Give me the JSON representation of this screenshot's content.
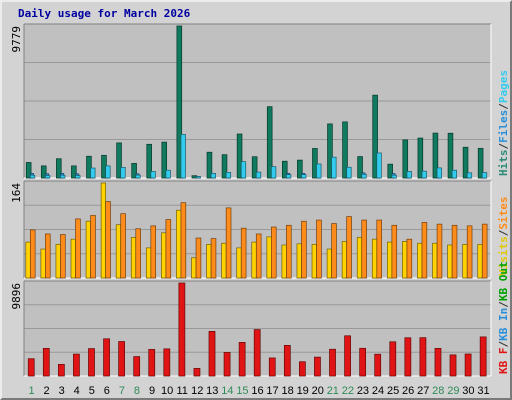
{
  "chart_data": {
    "type": "bar",
    "title": "Daily usage for March 2026",
    "title_color": "#0000a0",
    "categories": [
      "1",
      "2",
      "3",
      "4",
      "5",
      "6",
      "7",
      "8",
      "9",
      "10",
      "11",
      "12",
      "13",
      "14",
      "15",
      "16",
      "17",
      "18",
      "19",
      "20",
      "21",
      "22",
      "23",
      "24",
      "25",
      "26",
      "27",
      "28",
      "29",
      "30",
      "31"
    ],
    "weekend_days": [
      1,
      7,
      8,
      14,
      15,
      21,
      22,
      28,
      29
    ],
    "weekday_color": "#000000",
    "weekend_color": "#2e8b57",
    "panels": [
      {
        "id": "hits",
        "max_label": "9779",
        "ymax": 9779,
        "legend": [
          {
            "text": "Hits",
            "color": "#2e8b7a"
          },
          {
            "text": "/",
            "color": "#333333"
          },
          {
            "text": "Files",
            "color": "#2a8fd8"
          },
          {
            "text": "/",
            "color": "#333333"
          },
          {
            "text": "Pages",
            "color": "#33ccee"
          }
        ],
        "series": [
          {
            "name": "Hits",
            "color": "#0f7a5e",
            "values": [
              1000,
              780,
              1240,
              780,
              1400,
              1460,
              2260,
              940,
              2170,
              2310,
              9779,
              150,
              1660,
              1500,
              2830,
              1370,
              4590,
              1080,
              1150,
              1900,
              3480,
              3610,
              1380,
              5330,
              890,
              2450,
              2570,
              2890,
              2880,
              1980,
              1910
            ]
          },
          {
            "name": "Files",
            "color": "#2a8fd8",
            "values": [
              290,
              270,
              290,
              270,
              300,
              300,
              300,
              270,
              290,
              330,
              400,
              90,
              290,
              290,
              360,
              300,
              360,
              300,
              300,
              310,
              360,
              370,
              330,
              390,
              280,
              330,
              340,
              350,
              350,
              320,
              330
            ]
          },
          {
            "name": "Pages",
            "color": "#33ccee",
            "values": [
              180,
              160,
              180,
              160,
              640,
              780,
              680,
              180,
              420,
              500,
              2800,
              90,
              300,
              360,
              1050,
              380,
              730,
              220,
              220,
              900,
              1340,
              690,
              240,
              1610,
              180,
              420,
              440,
              650,
              500,
              330,
              350
            ]
          }
        ]
      },
      {
        "id": "visits",
        "max_label": "164",
        "ymax": 164,
        "legend": [
          {
            "text": "Visits",
            "color": "#e0c800"
          },
          {
            "text": "/",
            "color": "#333333"
          },
          {
            "text": "Sites",
            "color": "#ff8c1a"
          }
        ],
        "series": [
          {
            "name": "Visits",
            "color": "#ffd200",
            "values": [
              62,
              50,
              58,
              67,
              98,
              164,
              92,
              70,
              52,
              78,
              117,
              35,
              58,
              60,
              52,
              62,
              71,
              57,
              59,
              58,
              50,
              63,
              70,
              67,
              62,
              63,
              60,
              60,
              57,
              58,
              58
            ]
          },
          {
            "name": "Sites",
            "color": "#ff8c1a",
            "values": [
              83,
              76,
              75,
              102,
              108,
              132,
              111,
              85,
              90,
              101,
              130,
              69,
              68,
              121,
              86,
              76,
              88,
              91,
              98,
              100,
              94,
              106,
              100,
              100,
              91,
              67,
              96,
              93,
              91,
              90,
              93
            ]
          }
        ]
      },
      {
        "id": "kb",
        "max_label": "9896",
        "ymax": 9896,
        "legend": [
          {
            "text": "KB F",
            "color": "#e01414"
          },
          {
            "text": "/",
            "color": "#333333"
          },
          {
            "text": "KB In",
            "color": "#2a8fd8"
          },
          {
            "text": "/",
            "color": "#333333"
          },
          {
            "text": "KB Out",
            "color": "#00a000"
          }
        ],
        "series": [
          {
            "name": "KB F",
            "color": "#e01414",
            "values": [
              1840,
              2940,
              1240,
              2330,
              2920,
              3960,
              3670,
              2070,
              2830,
              2890,
              9896,
              810,
              4750,
              2510,
              3580,
              4940,
              1920,
              3260,
              1520,
              2010,
              2850,
              4280,
              2950,
              2320,
              3640,
              4070,
              4080,
              2940,
              2250,
              2340,
              4160
            ]
          }
        ]
      }
    ]
  }
}
